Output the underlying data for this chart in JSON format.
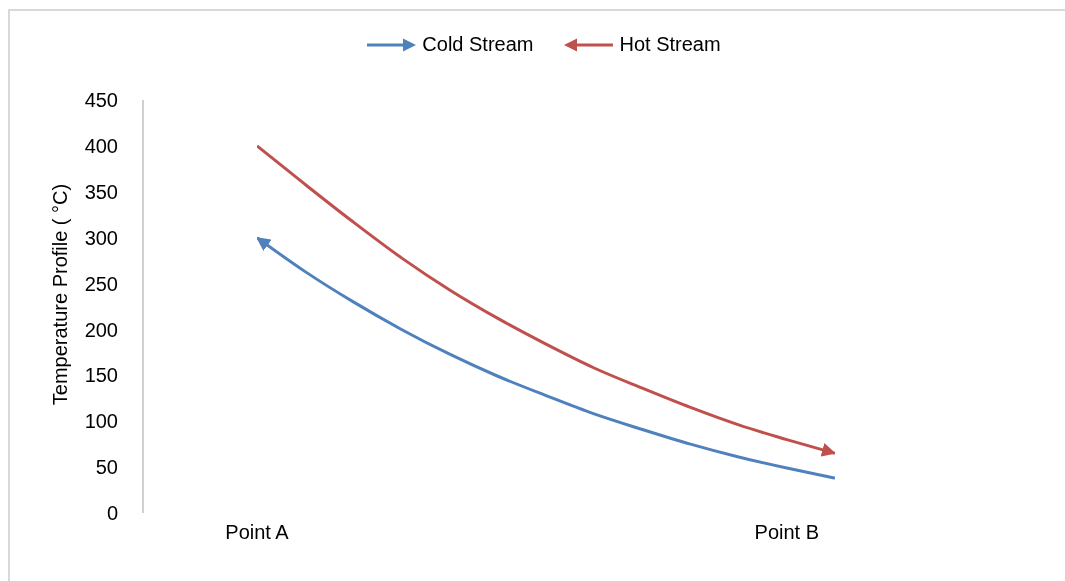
{
  "chart_data": {
    "type": "line",
    "ylabel": "Temperature Profile ( °C)",
    "categories": [
      "Point A",
      null,
      null,
      null,
      null,
      null,
      null,
      null,
      null,
      null,
      null,
      "Point B",
      null
    ],
    "series": [
      {
        "name": "Cold Stream",
        "color": "#4f81bd",
        "values": [
          300,
          263,
          230,
          200,
          173,
          149,
          128,
          108,
          91,
          75,
          61,
          49,
          38
        ]
      },
      {
        "name": "Hot Stream",
        "color": "#c0504d",
        "values": [
          400,
          358,
          317,
          278,
          243,
          212,
          184,
          158,
          136,
          115,
          96,
          80,
          65
        ]
      }
    ],
    "ylim": [
      0,
      450
    ],
    "yticks": [
      0,
      50,
      100,
      150,
      200,
      250,
      300,
      350,
      400,
      450
    ],
    "grid": false,
    "legend": "top",
    "marker": "none",
    "line_style": "solid"
  }
}
